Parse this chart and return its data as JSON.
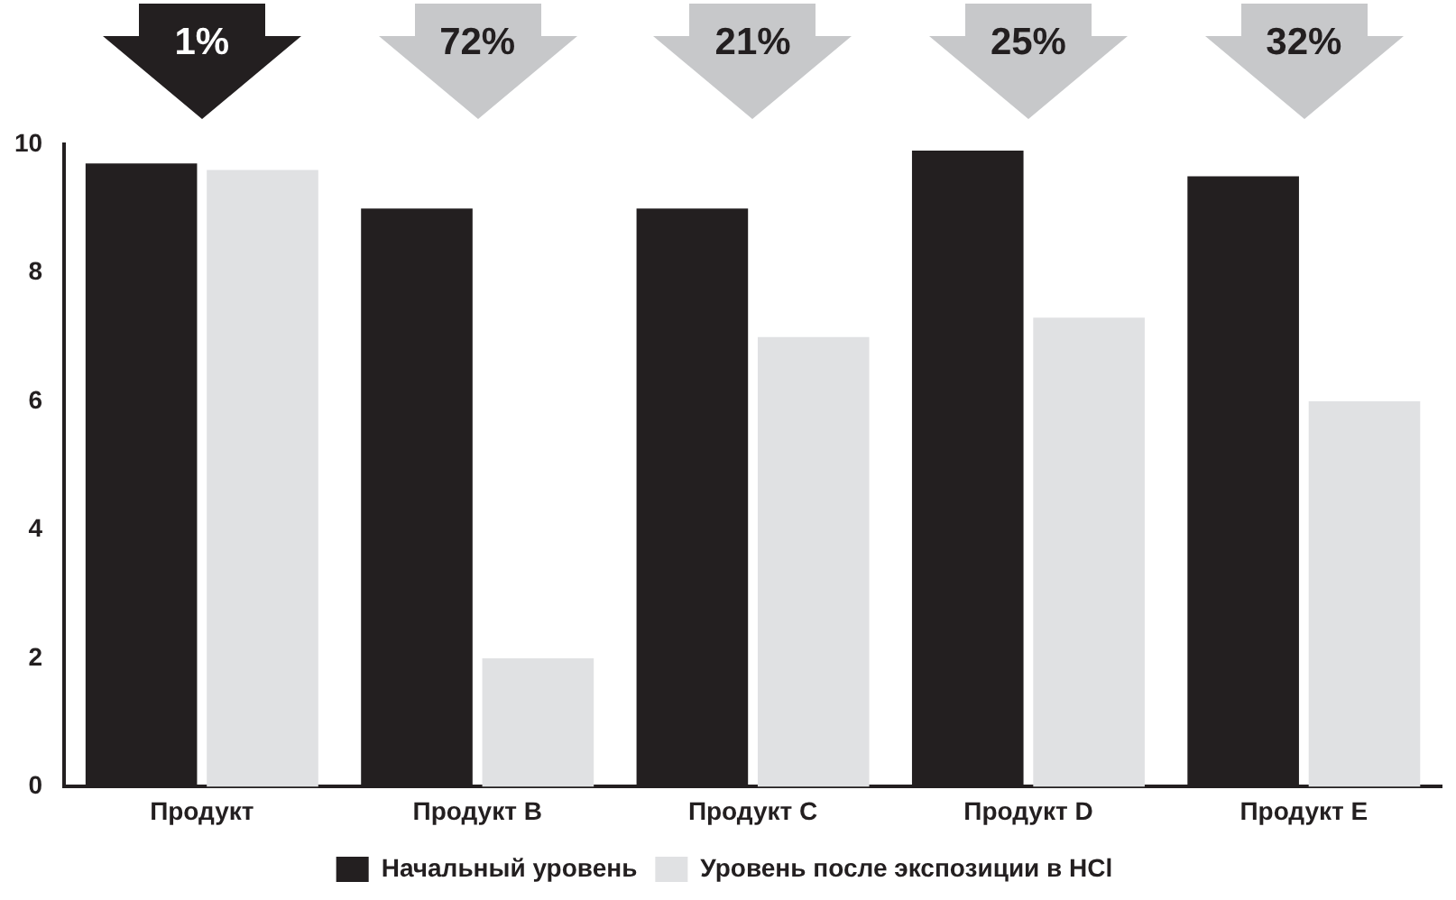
{
  "chart_data": {
    "type": "bar",
    "categories": [
      "Продукт",
      "Продукт B",
      "Продукт C",
      "Продукт D",
      "Продукт E"
    ],
    "series": [
      {
        "name": "Начальный уровень",
        "color": "#231f20",
        "values": [
          9.7,
          9.0,
          9.0,
          9.9,
          9.5
        ]
      },
      {
        "name": "Уровень после экспозиции в HCl",
        "color": "#e0e1e3",
        "values": [
          9.6,
          2.0,
          7.0,
          7.3,
          6.0
        ]
      }
    ],
    "annotations": [
      "1%",
      "72%",
      "21%",
      "25%",
      "32%"
    ],
    "ylim": [
      0,
      10
    ],
    "yticks": [
      0,
      2,
      4,
      6,
      8,
      10
    ],
    "grid": false,
    "legend": "bottom"
  }
}
